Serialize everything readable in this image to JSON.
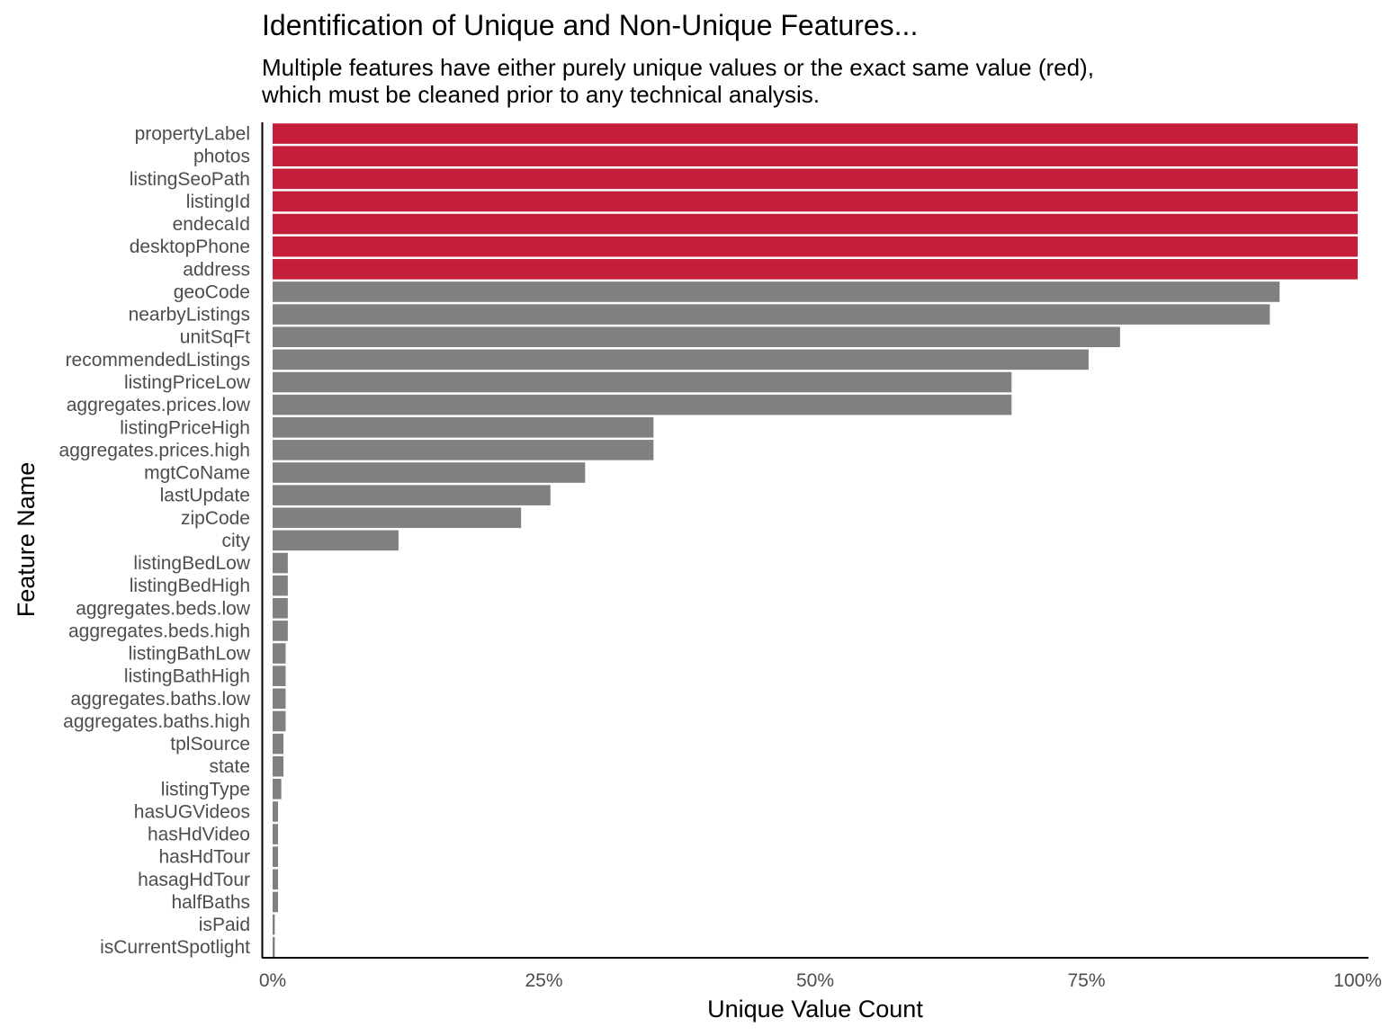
{
  "chart_data": {
    "type": "bar",
    "orientation": "horizontal",
    "title": "Identification of Unique and Non-Unique Features...",
    "subtitle": "Multiple features have either purely unique values or the exact same value (red),\nwhich must be cleaned prior to any technical analysis.",
    "xlabel": "Unique Value Count",
    "ylabel": "Feature Name",
    "xlim": [
      0,
      1
    ],
    "xticks": [
      0,
      0.25,
      0.5,
      0.75,
      1.0
    ],
    "xtick_labels": [
      "0%",
      "25%",
      "50%",
      "75%",
      "100%"
    ],
    "grid": false,
    "colors": {
      "highlight": "#C41E3A",
      "normal": "#808080"
    },
    "categories": [
      "propertyLabel",
      "photos",
      "listingSeoPath",
      "listingId",
      "endecaId",
      "desktopPhone",
      "address",
      "geoCode",
      "nearbyListings",
      "unitSqFt",
      "recommendedListings",
      "listingPriceLow",
      "aggregates.prices.low",
      "listingPriceHigh",
      "aggregates.prices.high",
      "mgtCoName",
      "lastUpdate",
      "zipCode",
      "city",
      "listingBedLow",
      "listingBedHigh",
      "aggregates.beds.low",
      "aggregates.beds.high",
      "listingBathLow",
      "listingBathHigh",
      "aggregates.baths.low",
      "aggregates.baths.high",
      "tplSource",
      "state",
      "listingType",
      "hasUGVideos",
      "hasHdVideo",
      "hasHdTour",
      "hasagHdTour",
      "halfBaths",
      "isPaid",
      "isCurrentSpotlight"
    ],
    "values": [
      1.0,
      1.0,
      1.0,
      1.0,
      1.0,
      1.0,
      1.0,
      0.928,
      0.919,
      0.781,
      0.752,
      0.681,
      0.681,
      0.351,
      0.351,
      0.288,
      0.256,
      0.229,
      0.116,
      0.014,
      0.014,
      0.014,
      0.014,
      0.012,
      0.012,
      0.012,
      0.012,
      0.01,
      0.01,
      0.008,
      0.005,
      0.005,
      0.005,
      0.005,
      0.005,
      0.002,
      0.002
    ],
    "highlighted": [
      true,
      true,
      true,
      true,
      true,
      true,
      true,
      false,
      false,
      false,
      false,
      false,
      false,
      false,
      false,
      false,
      false,
      false,
      false,
      false,
      false,
      false,
      false,
      false,
      false,
      false,
      false,
      false,
      false,
      false,
      false,
      false,
      false,
      false,
      false,
      false,
      false
    ]
  }
}
